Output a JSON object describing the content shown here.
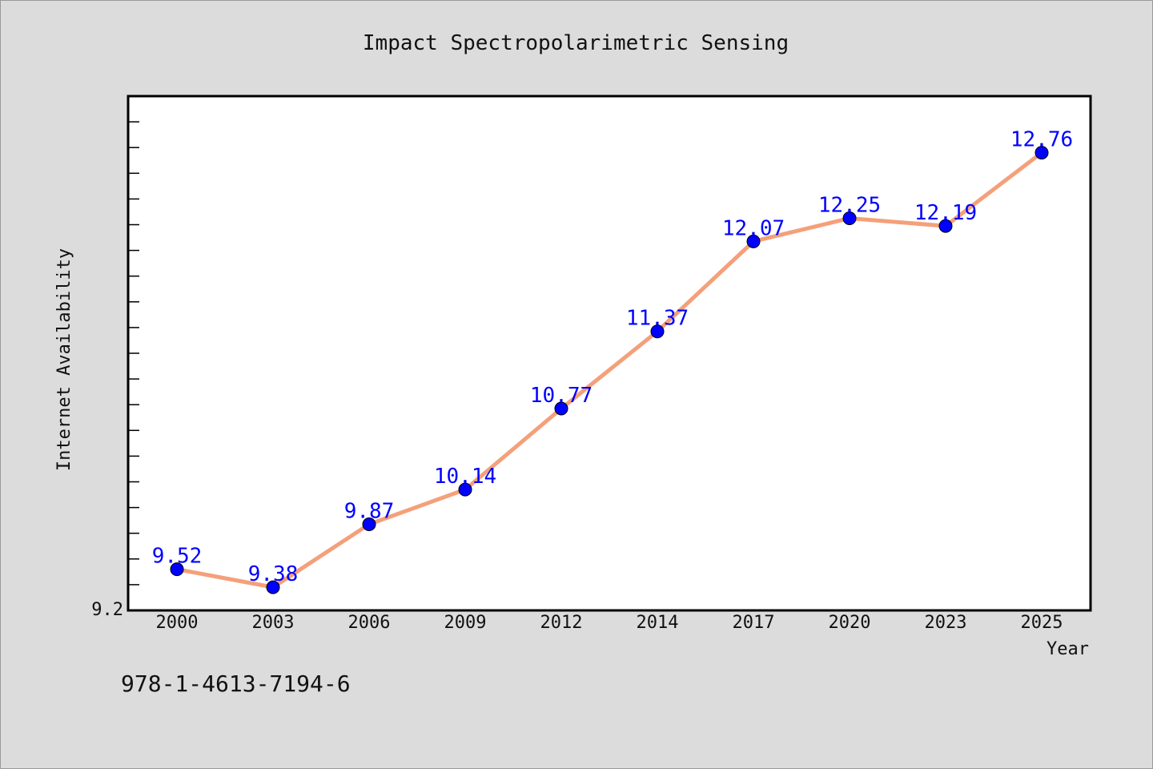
{
  "chart_data": {
    "type": "line",
    "title": "Impact Spectropolarimetric Sensing",
    "xlabel": "Year",
    "ylabel": "Internet Availability",
    "categories": [
      "2000",
      "2003",
      "2006",
      "2009",
      "2012",
      "2014",
      "2017",
      "2020",
      "2023",
      "2025"
    ],
    "series": [
      {
        "values": [
          9.52,
          9.38,
          9.87,
          10.14,
          10.77,
          11.37,
          12.07,
          12.25,
          12.19,
          12.76
        ],
        "labels": [
          "9.52",
          "9.38",
          "9.87",
          "10.14",
          "10.77",
          "11.37",
          "12.07",
          "12.25",
          "12.19",
          "12.76"
        ]
      }
    ],
    "y_tick_labels": [
      "9.2"
    ],
    "ylim": [
      9.2,
      13.2
    ],
    "grid": false,
    "line_color": "#f4a07a",
    "marker_color": "#0000ff",
    "label_color": "#0000ff"
  },
  "footer": {
    "isbn": "978-1-4613-7194-6"
  }
}
